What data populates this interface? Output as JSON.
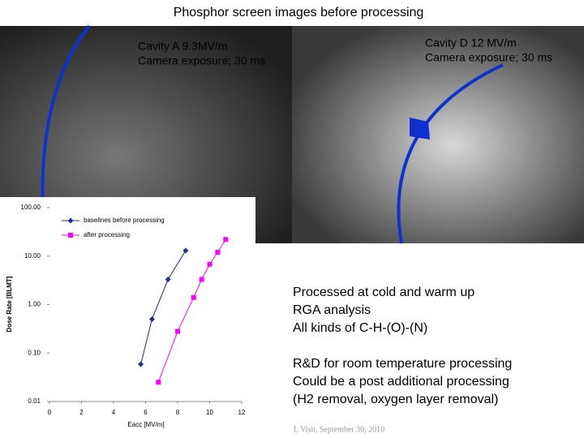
{
  "slide": {
    "title": "Phosphor screen images before processing",
    "image_left": {
      "line1": "Cavity A 9.3MV/m",
      "line2": "Camera exposure; 30 ms"
    },
    "image_right": {
      "line1": "Cavity D 12 MV/m",
      "line2": "Camera exposure; 30 ms"
    },
    "bullets": [
      "Processed at cold and warm up",
      "RGA analysis",
      "All kinds of C-H-(O)-(N)"
    ],
    "bullets2": [
      "R&D for room temperature processing",
      "Could be a post additional processing",
      "(H2 removal, oxygen layer removal)"
    ],
    "footer": "L Visit, September 30, 2010"
  },
  "chart_data": {
    "type": "line",
    "x_label": "Eacc [MV/m]",
    "y_label": "Dose Rate [BLMT]",
    "xlim": [
      0,
      12
    ],
    "xticks": [
      0,
      2,
      4,
      6,
      8,
      10,
      12
    ],
    "ylim": [
      0.01,
      100
    ],
    "ylog": true,
    "yticks": [
      {
        "value": 0.01,
        "label": "0.01"
      },
      {
        "value": 0.1,
        "label": "0.10"
      },
      {
        "value": 1,
        "label": "1.00"
      },
      {
        "value": 10,
        "label": "10.00"
      },
      {
        "value": 100,
        "label": "100.00"
      }
    ],
    "series": [
      {
        "name": "baselines before processing",
        "color": "#1f2f8f",
        "marker": "diamond",
        "x": [
          5.7,
          6.4,
          7.4,
          8.5
        ],
        "values": [
          0.059,
          0.5,
          3.3,
          13
        ]
      },
      {
        "name": "after processing",
        "color": "#ff00ff",
        "marker": "square",
        "x": [
          6.8,
          8.0,
          9.0,
          9.5,
          10.0,
          10.5,
          11.0
        ],
        "values": [
          0.025,
          0.28,
          1.4,
          3.3,
          6.8,
          12,
          22
        ]
      }
    ]
  }
}
